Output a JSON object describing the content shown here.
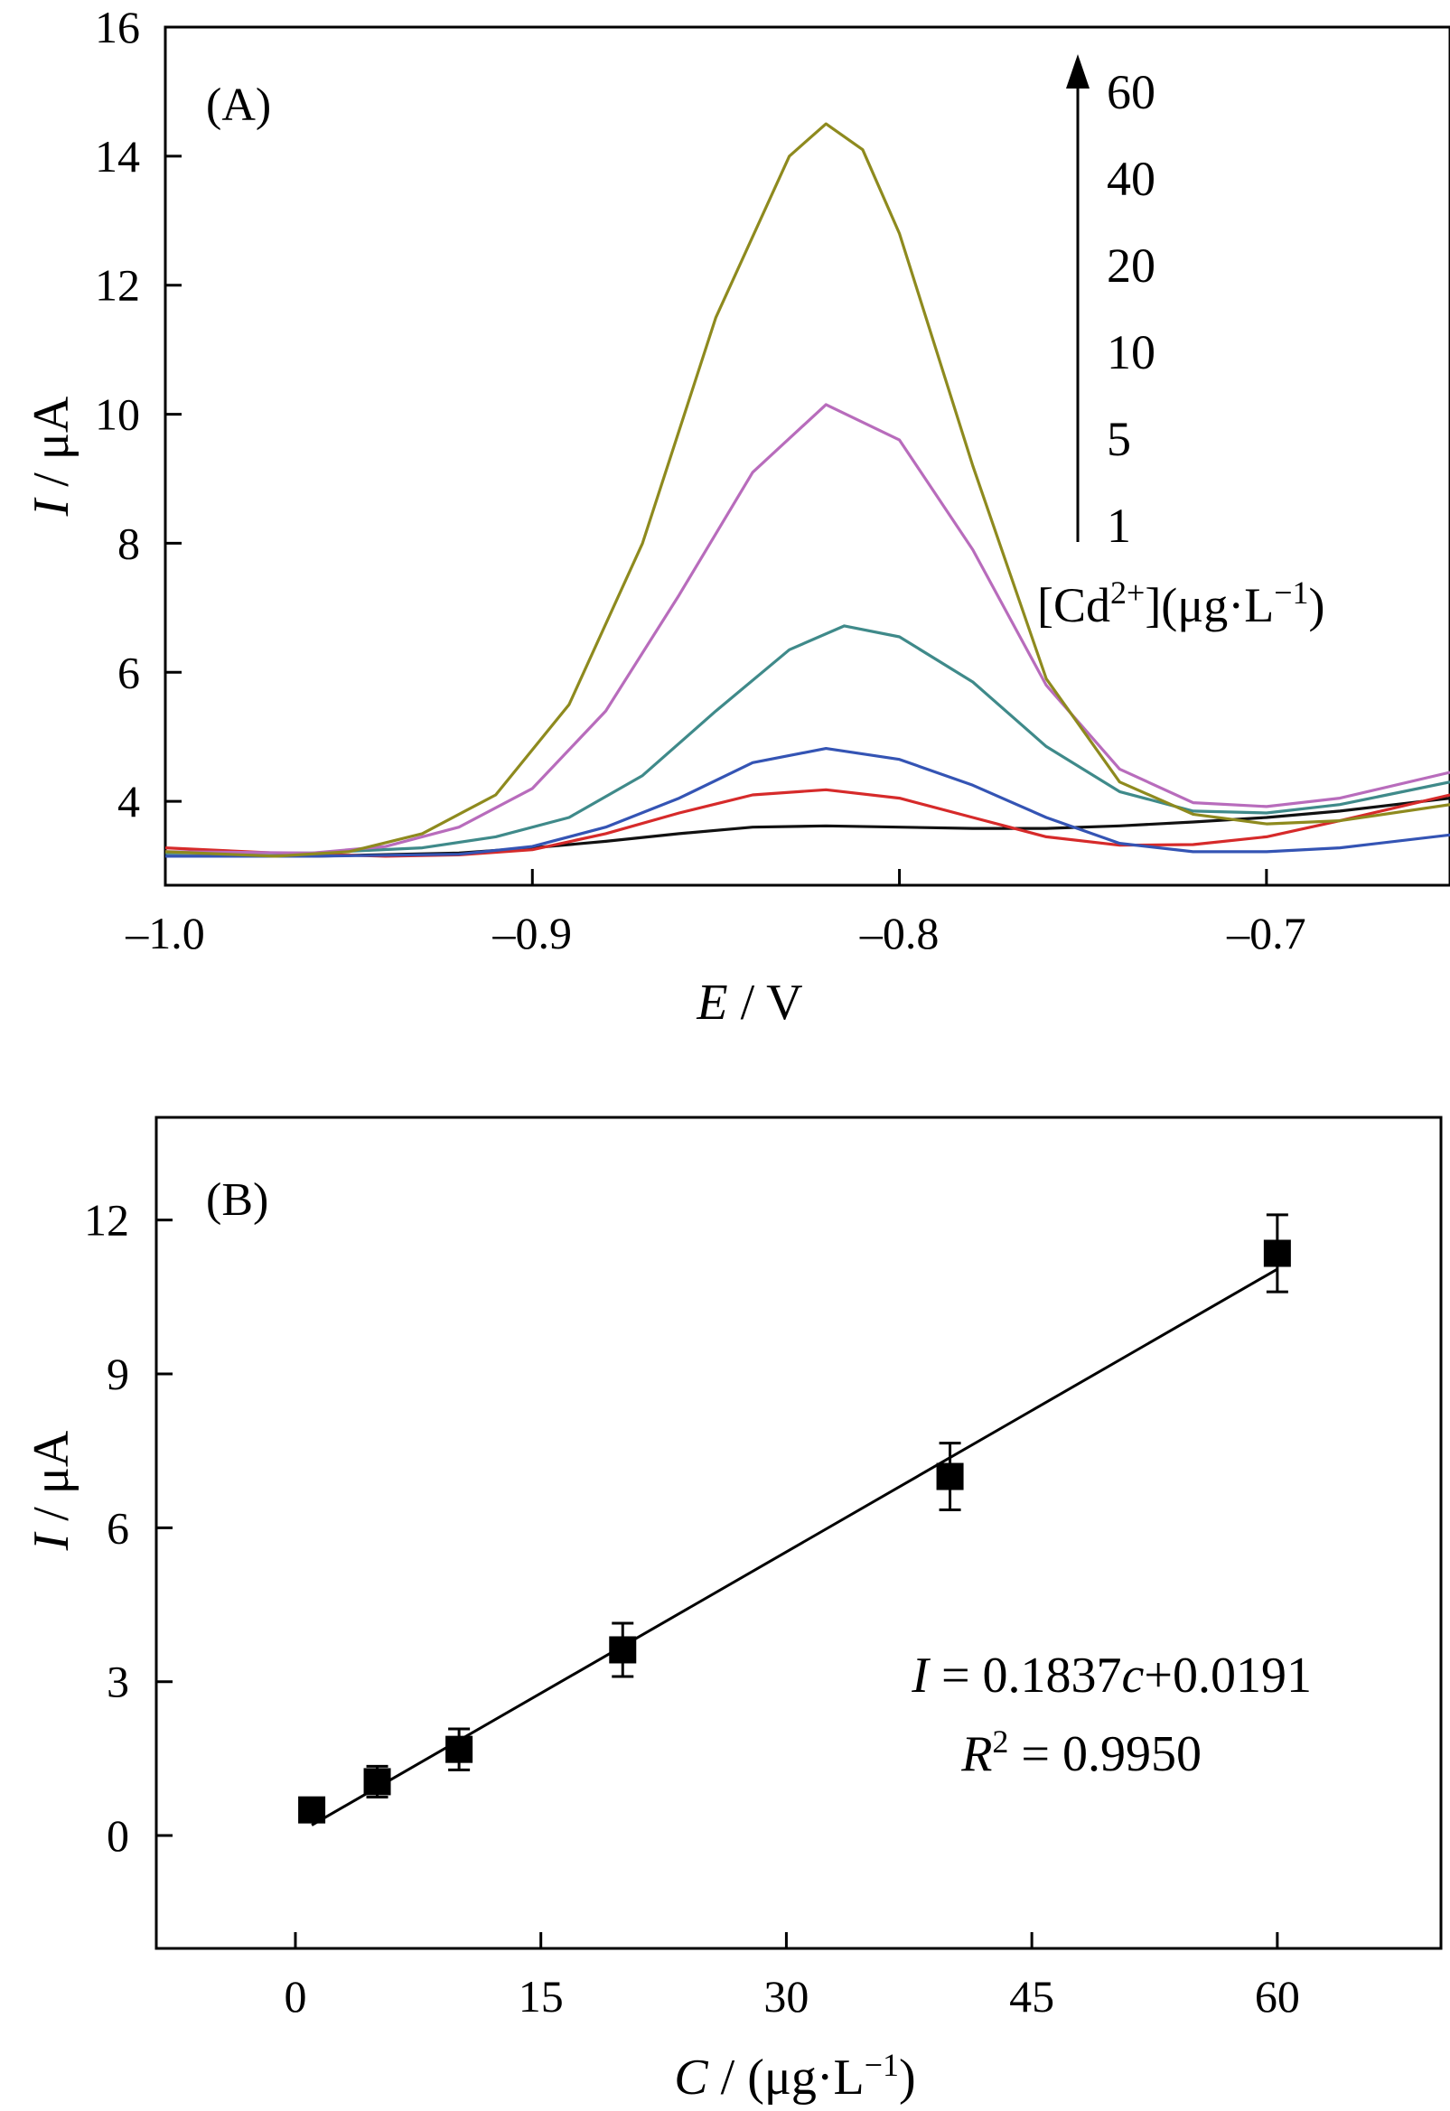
{
  "chart_data": [
    {
      "panel_label": "(A)",
      "type": "line",
      "xlabel": {
        "var": "E",
        "rest": " / V"
      },
      "ylabel": {
        "var": "I",
        "rest": " / μA"
      },
      "xlim": [
        -1.0,
        -0.65
      ],
      "ylim": [
        2.7,
        16
      ],
      "x_ticks": [
        -1.0,
        -0.9,
        -0.8,
        -0.7
      ],
      "x_tick_labels": [
        "–1.0",
        "–0.9",
        "–0.8",
        "–0.7"
      ],
      "y_ticks": [
        4,
        6,
        8,
        10,
        12,
        14,
        16
      ],
      "y_tick_labels": [
        "4",
        "6",
        "8",
        "10",
        "12",
        "14",
        "16"
      ],
      "series": [
        {
          "color": "#111111",
          "points": [
            [
              -1.0,
              3.15
            ],
            [
              -0.96,
              3.15
            ],
            [
              -0.92,
              3.2
            ],
            [
              -0.9,
              3.28
            ],
            [
              -0.88,
              3.38
            ],
            [
              -0.86,
              3.5
            ],
            [
              -0.84,
              3.6
            ],
            [
              -0.82,
              3.62
            ],
            [
              -0.8,
              3.6
            ],
            [
              -0.78,
              3.58
            ],
            [
              -0.76,
              3.58
            ],
            [
              -0.74,
              3.62
            ],
            [
              -0.72,
              3.68
            ],
            [
              -0.7,
              3.75
            ],
            [
              -0.68,
              3.85
            ],
            [
              -0.65,
              4.05
            ]
          ]
        },
        {
          "color": "#d62a2a",
          "points": [
            [
              -1.0,
              3.28
            ],
            [
              -0.97,
              3.2
            ],
            [
              -0.94,
              3.15
            ],
            [
              -0.92,
              3.17
            ],
            [
              -0.9,
              3.25
            ],
            [
              -0.88,
              3.5
            ],
            [
              -0.86,
              3.82
            ],
            [
              -0.84,
              4.1
            ],
            [
              -0.82,
              4.18
            ],
            [
              -0.8,
              4.05
            ],
            [
              -0.78,
              3.75
            ],
            [
              -0.76,
              3.45
            ],
            [
              -0.74,
              3.32
            ],
            [
              -0.72,
              3.33
            ],
            [
              -0.7,
              3.45
            ],
            [
              -0.68,
              3.7
            ],
            [
              -0.65,
              4.1
            ]
          ]
        },
        {
          "color": "#3454b4",
          "points": [
            [
              -1.0,
              3.15
            ],
            [
              -0.96,
              3.15
            ],
            [
              -0.92,
              3.18
            ],
            [
              -0.9,
              3.3
            ],
            [
              -0.88,
              3.6
            ],
            [
              -0.86,
              4.05
            ],
            [
              -0.84,
              4.6
            ],
            [
              -0.82,
              4.82
            ],
            [
              -0.8,
              4.65
            ],
            [
              -0.78,
              4.25
            ],
            [
              -0.76,
              3.75
            ],
            [
              -0.74,
              3.35
            ],
            [
              -0.72,
              3.22
            ],
            [
              -0.7,
              3.22
            ],
            [
              -0.68,
              3.28
            ],
            [
              -0.65,
              3.48
            ]
          ]
        },
        {
          "color": "#3f8a8a",
          "points": [
            [
              -1.0,
              3.2
            ],
            [
              -0.96,
              3.2
            ],
            [
              -0.93,
              3.28
            ],
            [
              -0.91,
              3.45
            ],
            [
              -0.89,
              3.75
            ],
            [
              -0.87,
              4.4
            ],
            [
              -0.85,
              5.4
            ],
            [
              -0.83,
              6.35
            ],
            [
              -0.815,
              6.72
            ],
            [
              -0.8,
              6.55
            ],
            [
              -0.78,
              5.85
            ],
            [
              -0.76,
              4.85
            ],
            [
              -0.74,
              4.15
            ],
            [
              -0.72,
              3.85
            ],
            [
              -0.7,
              3.82
            ],
            [
              -0.68,
              3.95
            ],
            [
              -0.65,
              4.3
            ]
          ]
        },
        {
          "color": "#b86cbc",
          "points": [
            [
              -1.0,
              3.22
            ],
            [
              -0.96,
              3.2
            ],
            [
              -0.94,
              3.3
            ],
            [
              -0.92,
              3.6
            ],
            [
              -0.9,
              4.2
            ],
            [
              -0.88,
              5.4
            ],
            [
              -0.86,
              7.2
            ],
            [
              -0.84,
              9.1
            ],
            [
              -0.82,
              10.15
            ],
            [
              -0.8,
              9.6
            ],
            [
              -0.78,
              7.9
            ],
            [
              -0.76,
              5.8
            ],
            [
              -0.74,
              4.5
            ],
            [
              -0.72,
              3.98
            ],
            [
              -0.7,
              3.92
            ],
            [
              -0.68,
              4.05
            ],
            [
              -0.65,
              4.45
            ]
          ]
        },
        {
          "color": "#8e8a1e",
          "points": [
            [
              -1.0,
              3.22
            ],
            [
              -0.97,
              3.15
            ],
            [
              -0.95,
              3.22
            ],
            [
              -0.93,
              3.5
            ],
            [
              -0.91,
              4.1
            ],
            [
              -0.89,
              5.5
            ],
            [
              -0.87,
              8.0
            ],
            [
              -0.85,
              11.5
            ],
            [
              -0.83,
              14.0
            ],
            [
              -0.82,
              14.5
            ],
            [
              -0.81,
              14.1
            ],
            [
              -0.8,
              12.8
            ],
            [
              -0.78,
              9.2
            ],
            [
              -0.76,
              5.9
            ],
            [
              -0.74,
              4.3
            ],
            [
              -0.72,
              3.8
            ],
            [
              -0.7,
              3.65
            ],
            [
              -0.68,
              3.7
            ],
            [
              -0.65,
              3.95
            ]
          ]
        }
      ],
      "legend_values": [
        "60",
        "40",
        "20",
        "10",
        "5",
        "1"
      ],
      "legend_title": "[Cd",
      "legend_title_sup": "2+",
      "legend_title_rest": "](μg·L",
      "legend_title_sup2": "−1",
      "legend_title_end": ")"
    },
    {
      "panel_label": "(B)",
      "type": "scatter",
      "xlabel": {
        "var": "C",
        "rest": " / (μg·L",
        "sup": "−1",
        "end": ")"
      },
      "ylabel": {
        "var": "I",
        "rest": " / μA"
      },
      "xlim": [
        -8.5,
        70
      ],
      "ylim": [
        -2.2,
        14
      ],
      "x_ticks": [
        0,
        15,
        30,
        45,
        60
      ],
      "x_tick_labels": [
        "0",
        "15",
        "30",
        "45",
        "60"
      ],
      "y_ticks": [
        0,
        3,
        6,
        9,
        12
      ],
      "y_tick_labels": [
        "0",
        "3",
        "6",
        "9",
        "12"
      ],
      "points": [
        {
          "x": 1,
          "y": 0.5,
          "err": 0.0
        },
        {
          "x": 5,
          "y": 1.05,
          "err": 0.3
        },
        {
          "x": 10,
          "y": 1.68,
          "err": 0.4
        },
        {
          "x": 20,
          "y": 3.62,
          "err": 0.52
        },
        {
          "x": 40,
          "y": 7.0,
          "err": 0.65
        },
        {
          "x": 60,
          "y": 11.35,
          "err": 0.75
        }
      ],
      "fit": {
        "slope": 0.1837,
        "intercept": 0.0191,
        "x_range": [
          1,
          60
        ]
      },
      "equation": {
        "var": "I",
        "eq_a": " = 0.1837",
        "var2": "c",
        "eq_b": "+0.0191"
      },
      "r2": {
        "var": "R",
        "sup": "2",
        "rest": " = 0.9950"
      }
    }
  ]
}
